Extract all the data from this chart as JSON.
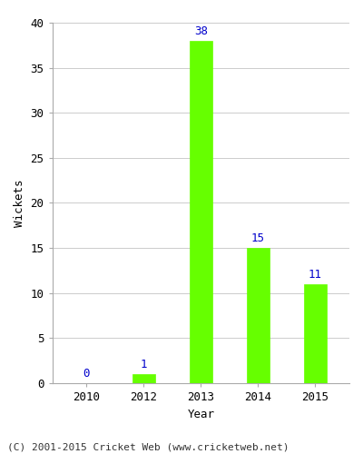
{
  "years": [
    "2010",
    "2012",
    "2013",
    "2014",
    "2015"
  ],
  "values": [
    0,
    1,
    38,
    15,
    11
  ],
  "bar_color": "#66ff00",
  "bar_edge_color": "#66ff00",
  "label_color": "#0000cc",
  "xlabel": "Year",
  "ylabel": "Wickets",
  "ylim": [
    0,
    40
  ],
  "yticks": [
    0,
    5,
    10,
    15,
    20,
    25,
    30,
    35,
    40
  ],
  "footer": "(C) 2001-2015 Cricket Web (www.cricketweb.net)",
  "footer_color": "#333333",
  "background_color": "#ffffff",
  "axes_bg_color": "#ffffff",
  "grid_color": "#cccccc",
  "label_fontsize": 9,
  "axis_label_fontsize": 9,
  "tick_fontsize": 9,
  "footer_fontsize": 8,
  "bar_width": 0.4
}
